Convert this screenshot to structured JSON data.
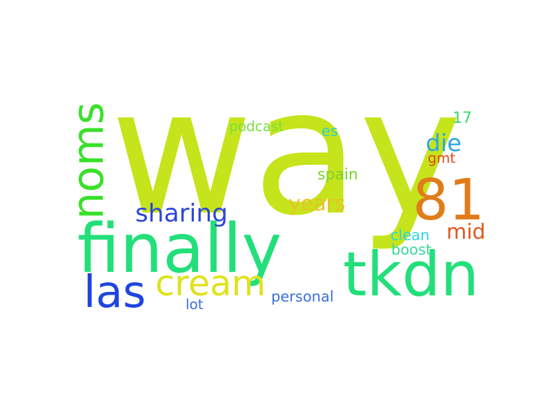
{
  "words": {
    "way": {
      "text": "way",
      "color": "#c5e41b"
    },
    "finally": {
      "text": "finally",
      "color": "#22df7a"
    },
    "tkdn": {
      "text": "tkdn",
      "color": "#22df7a"
    },
    "noms": {
      "text": "noms",
      "color": "#3ae02a"
    },
    "n81": {
      "text": "81",
      "color": "#e17c1b"
    },
    "las": {
      "text": "las",
      "color": "#1f45e0"
    },
    "cream": {
      "text": "cream",
      "color": "#dfe21c"
    },
    "sharing": {
      "text": "sharing",
      "color": "#2d46d8"
    },
    "years": {
      "text": "years",
      "color": "#e8c22c"
    },
    "die": {
      "text": "die",
      "color": "#2aa7e2"
    },
    "mid": {
      "text": "mid",
      "color": "#e1571b"
    },
    "podcast": {
      "text": "podcast",
      "color": "#7be03c"
    },
    "es": {
      "text": "es",
      "color": "#2ad0c4"
    },
    "n17": {
      "text": "17",
      "color": "#3cd96e"
    },
    "gmt": {
      "text": "gmt",
      "color": "#e1471b"
    },
    "spain": {
      "text": "spain",
      "color": "#7ad42a"
    },
    "clean": {
      "text": "clean",
      "color": "#2ad6e0"
    },
    "boost": {
      "text": "boost",
      "color": "#36db9a"
    },
    "lot": {
      "text": "lot",
      "color": "#3a6fe0"
    },
    "personal": {
      "text": "personal",
      "color": "#3a6fe0"
    }
  }
}
